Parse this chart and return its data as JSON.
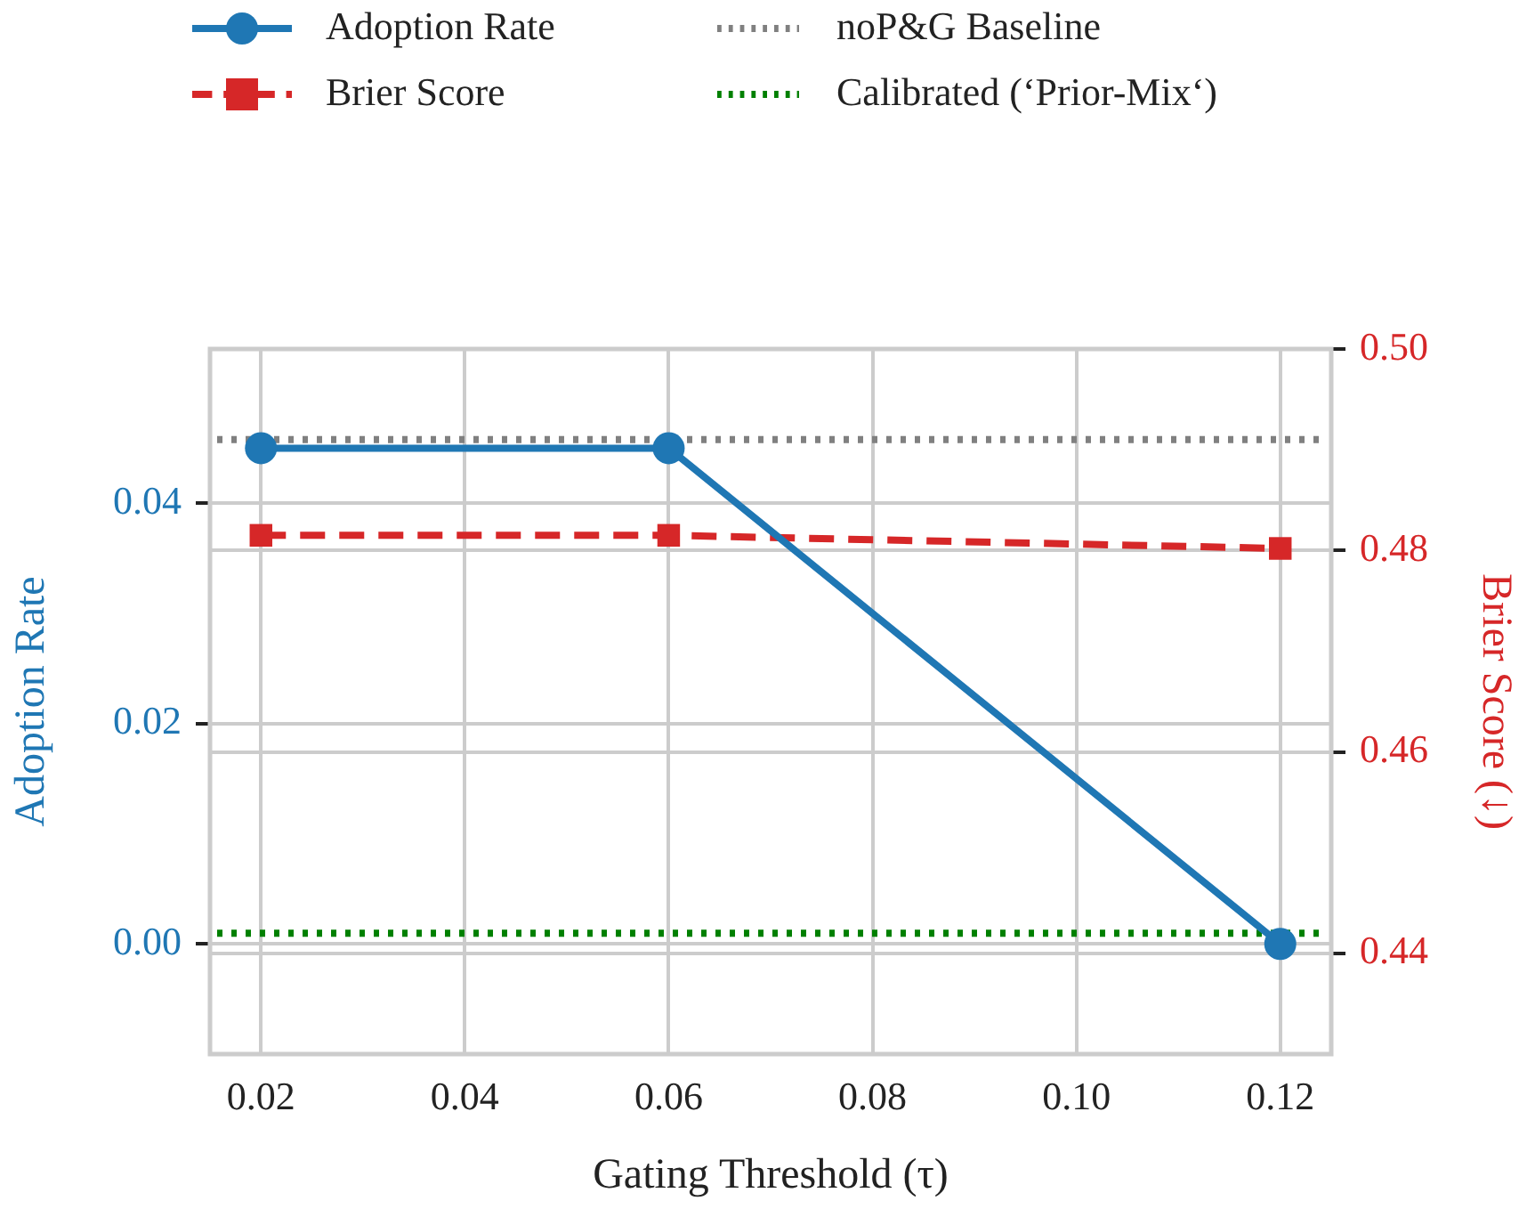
{
  "chart_data": {
    "type": "line",
    "xlabel": "Gating Threshold (τ)",
    "ylabel": "Adoption Rate",
    "y2label": "Brier Score (↓)",
    "x": [
      0.02,
      0.06,
      0.12
    ],
    "xlim": [
      0.015,
      0.125
    ],
    "xticks": [
      0.02,
      0.04,
      0.06,
      0.08,
      {
        "value": 0.1,
        "label": "0.10"
      },
      0.12
    ],
    "ylim": [
      -0.01,
      0.054
    ],
    "yticks": [
      {
        "value": 0,
        "label": "0.00"
      },
      0.02,
      0.04
    ],
    "y2lim": [
      0.43,
      0.5
    ],
    "y2ticks": [
      0.44,
      0.46,
      0.48,
      {
        "value": 0.5,
        "label": "0.50"
      }
    ],
    "series": [
      {
        "name": "Adoption Rate",
        "color": "#1f77b4",
        "values": [
          0.045,
          0.045,
          0.0
        ],
        "marker": "circle",
        "line_style": "solid"
      },
      {
        "name": "Brier Score",
        "color": "#d62728",
        "values": [
          0.4815,
          0.4815,
          0.4802
        ],
        "axis": "y2",
        "marker": "square",
        "line_style": "dashed"
      }
    ],
    "ref_lines": [
      {
        "axis": "y2",
        "value": 0.491,
        "label": "noP&G Baseline",
        "color": "#808080",
        "line_style": "dotted"
      },
      {
        "axis": "y2",
        "value": 0.442,
        "label": "Calibrated (‘Prior-Mix‘)",
        "color": "#008000",
        "line_style": "dotted"
      }
    ],
    "grid": true,
    "legend": "top"
  }
}
